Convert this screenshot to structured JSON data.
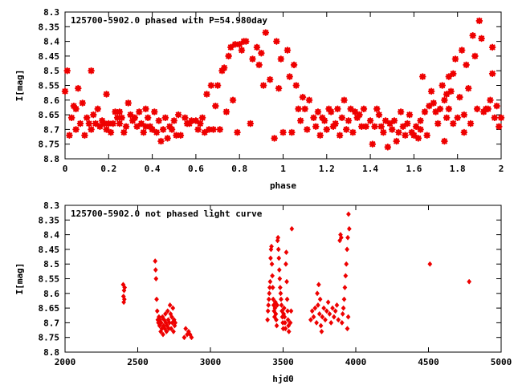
{
  "colors": {
    "series": "#ee0000",
    "axis": "#000000",
    "background": "#ffffff"
  },
  "chart_data": [
    {
      "type": "scatter",
      "title": "125700-5902.0 phased with P=54.980day",
      "xlabel": "phase",
      "ylabel": "I[mag]",
      "xlim": [
        0,
        2
      ],
      "ylim": [
        8.8,
        8.3
      ],
      "y_inverted": true,
      "grid": false,
      "marker": "star",
      "xticks": [
        "0",
        "0.2",
        "0.4",
        "0.6",
        "0.8",
        "1",
        "1.2",
        "1.4",
        "1.6",
        "1.8",
        "2"
      ],
      "yticks": [
        "8.3",
        "8.35",
        "8.4",
        "8.45",
        "8.5",
        "8.55",
        "8.6",
        "8.65",
        "8.7",
        "8.75",
        "8.8"
      ],
      "points": [
        [
          0.0,
          8.57
        ],
        [
          0.01,
          8.5
        ],
        [
          0.02,
          8.72
        ],
        [
          0.03,
          8.66
        ],
        [
          0.04,
          8.62
        ],
        [
          0.05,
          8.63
        ],
        [
          0.05,
          8.7
        ],
        [
          0.06,
          8.56
        ],
        [
          0.07,
          8.68
        ],
        [
          0.08,
          8.61
        ],
        [
          0.09,
          8.72
        ],
        [
          0.1,
          8.66
        ],
        [
          0.11,
          8.68
        ],
        [
          0.12,
          8.5
        ],
        [
          0.12,
          8.7
        ],
        [
          0.13,
          8.65
        ],
        [
          0.14,
          8.68
        ],
        [
          0.15,
          8.63
        ],
        [
          0.16,
          8.69
        ],
        [
          0.17,
          8.67
        ],
        [
          0.18,
          8.68
        ],
        [
          0.19,
          8.7
        ],
        [
          0.19,
          8.58
        ],
        [
          0.2,
          8.68
        ],
        [
          0.21,
          8.71
        ],
        [
          0.22,
          8.68
        ],
        [
          0.23,
          8.64
        ],
        [
          0.24,
          8.66
        ],
        [
          0.25,
          8.64
        ],
        [
          0.25,
          8.68
        ],
        [
          0.26,
          8.66
        ],
        [
          0.27,
          8.71
        ],
        [
          0.28,
          8.69
        ],
        [
          0.29,
          8.61
        ],
        [
          0.3,
          8.65
        ],
        [
          0.31,
          8.67
        ],
        [
          0.32,
          8.66
        ],
        [
          0.33,
          8.69
        ],
        [
          0.34,
          8.64
        ],
        [
          0.35,
          8.68
        ],
        [
          0.36,
          8.71
        ],
        [
          0.37,
          8.63
        ],
        [
          0.37,
          8.69
        ],
        [
          0.38,
          8.66
        ],
        [
          0.39,
          8.69
        ],
        [
          0.4,
          8.7
        ],
        [
          0.41,
          8.64
        ],
        [
          0.42,
          8.71
        ],
        [
          0.43,
          8.67
        ],
        [
          0.44,
          8.74
        ],
        [
          0.45,
          8.7
        ],
        [
          0.46,
          8.66
        ],
        [
          0.47,
          8.73
        ],
        [
          0.48,
          8.69
        ],
        [
          0.49,
          8.7
        ],
        [
          0.5,
          8.67
        ],
        [
          0.51,
          8.72
        ],
        [
          0.52,
          8.65
        ],
        [
          0.53,
          8.72
        ],
        [
          0.55,
          8.66
        ],
        [
          0.56,
          8.68
        ],
        [
          0.57,
          8.68
        ],
        [
          0.58,
          8.67
        ],
        [
          0.6,
          8.67
        ],
        [
          0.61,
          8.7
        ],
        [
          0.62,
          8.68
        ],
        [
          0.63,
          8.66
        ],
        [
          0.64,
          8.71
        ],
        [
          0.65,
          8.58
        ],
        [
          0.66,
          8.7
        ],
        [
          0.67,
          8.55
        ],
        [
          0.68,
          8.7
        ],
        [
          0.69,
          8.62
        ],
        [
          0.7,
          8.55
        ],
        [
          0.71,
          8.7
        ],
        [
          0.72,
          8.5
        ],
        [
          0.73,
          8.49
        ],
        [
          0.74,
          8.64
        ],
        [
          0.75,
          8.45
        ],
        [
          0.76,
          8.42
        ],
        [
          0.77,
          8.6
        ],
        [
          0.78,
          8.41
        ],
        [
          0.79,
          8.71
        ],
        [
          0.8,
          8.41
        ],
        [
          0.81,
          8.43
        ],
        [
          0.82,
          8.4
        ],
        [
          0.83,
          8.4
        ],
        [
          0.85,
          8.68
        ],
        [
          0.86,
          8.46
        ],
        [
          0.88,
          8.42
        ],
        [
          0.89,
          8.48
        ],
        [
          0.9,
          8.44
        ],
        [
          0.91,
          8.55
        ],
        [
          0.92,
          8.37
        ],
        [
          0.94,
          8.53
        ],
        [
          0.96,
          8.73
        ],
        [
          0.97,
          8.4
        ],
        [
          0.98,
          8.56
        ],
        [
          0.99,
          8.46
        ],
        [
          1.0,
          8.71
        ],
        [
          1.02,
          8.43
        ],
        [
          1.03,
          8.52
        ],
        [
          1.04,
          8.71
        ],
        [
          1.05,
          8.48
        ],
        [
          1.06,
          8.55
        ],
        [
          1.07,
          8.63
        ],
        [
          1.08,
          8.67
        ],
        [
          1.09,
          8.59
        ],
        [
          1.1,
          8.63
        ],
        [
          1.11,
          8.7
        ],
        [
          1.12,
          8.6
        ],
        [
          1.14,
          8.66
        ],
        [
          1.15,
          8.69
        ],
        [
          1.16,
          8.64
        ],
        [
          1.17,
          8.72
        ],
        [
          1.18,
          8.66
        ],
        [
          1.19,
          8.67
        ],
        [
          1.2,
          8.7
        ],
        [
          1.21,
          8.63
        ],
        [
          1.22,
          8.64
        ],
        [
          1.23,
          8.69
        ],
        [
          1.24,
          8.68
        ],
        [
          1.25,
          8.63
        ],
        [
          1.26,
          8.72
        ],
        [
          1.27,
          8.66
        ],
        [
          1.28,
          8.6
        ],
        [
          1.29,
          8.7
        ],
        [
          1.3,
          8.67
        ],
        [
          1.31,
          8.63
        ],
        [
          1.32,
          8.71
        ],
        [
          1.33,
          8.64
        ],
        [
          1.34,
          8.66
        ],
        [
          1.35,
          8.65
        ],
        [
          1.36,
          8.69
        ],
        [
          1.37,
          8.63
        ],
        [
          1.38,
          8.69
        ],
        [
          1.4,
          8.67
        ],
        [
          1.41,
          8.75
        ],
        [
          1.42,
          8.69
        ],
        [
          1.43,
          8.63
        ],
        [
          1.44,
          8.65
        ],
        [
          1.45,
          8.69
        ],
        [
          1.46,
          8.71
        ],
        [
          1.47,
          8.67
        ],
        [
          1.48,
          8.76
        ],
        [
          1.49,
          8.68
        ],
        [
          1.5,
          8.7
        ],
        [
          1.51,
          8.67
        ],
        [
          1.52,
          8.74
        ],
        [
          1.53,
          8.71
        ],
        [
          1.54,
          8.64
        ],
        [
          1.55,
          8.69
        ],
        [
          1.56,
          8.72
        ],
        [
          1.57,
          8.68
        ],
        [
          1.58,
          8.65
        ],
        [
          1.59,
          8.71
        ],
        [
          1.6,
          8.72
        ],
        [
          1.61,
          8.69
        ],
        [
          1.62,
          8.73
        ],
        [
          1.63,
          8.67
        ],
        [
          1.63,
          8.7
        ],
        [
          1.64,
          8.52
        ],
        [
          1.65,
          8.64
        ],
        [
          1.66,
          8.72
        ],
        [
          1.67,
          8.62
        ],
        [
          1.68,
          8.57
        ],
        [
          1.69,
          8.61
        ],
        [
          1.7,
          8.64
        ],
        [
          1.71,
          8.68
        ],
        [
          1.72,
          8.63
        ],
        [
          1.73,
          8.55
        ],
        [
          1.74,
          8.74
        ],
        [
          1.74,
          8.6
        ],
        [
          1.75,
          8.58
        ],
        [
          1.75,
          8.66
        ],
        [
          1.76,
          8.52
        ],
        [
          1.76,
          8.63
        ],
        [
          1.77,
          8.57
        ],
        [
          1.78,
          8.51
        ],
        [
          1.78,
          8.68
        ],
        [
          1.79,
          8.46
        ],
        [
          1.8,
          8.66
        ],
        [
          1.81,
          8.59
        ],
        [
          1.82,
          8.43
        ],
        [
          1.83,
          8.71
        ],
        [
          1.83,
          8.65
        ],
        [
          1.84,
          8.48
        ],
        [
          1.85,
          8.56
        ],
        [
          1.86,
          8.68
        ],
        [
          1.87,
          8.38
        ],
        [
          1.88,
          8.45
        ],
        [
          1.89,
          8.63
        ],
        [
          1.9,
          8.33
        ],
        [
          1.91,
          8.39
        ],
        [
          1.92,
          8.64
        ],
        [
          1.93,
          8.63
        ],
        [
          1.94,
          8.63
        ],
        [
          1.95,
          8.6
        ],
        [
          1.96,
          8.42
        ],
        [
          1.96,
          8.51
        ],
        [
          1.97,
          8.66
        ],
        [
          1.98,
          8.62
        ],
        [
          1.99,
          8.69
        ],
        [
          2.0,
          8.66
        ]
      ]
    },
    {
      "type": "scatter",
      "title": "125700-5902.0 not phased light curve",
      "xlabel": "hjd0",
      "ylabel": "I[mag]",
      "xlim": [
        2000,
        5000
      ],
      "ylim": [
        8.8,
        8.3
      ],
      "y_inverted": true,
      "grid": false,
      "marker": "diamond",
      "xticks": [
        "2000",
        "2500",
        "3000",
        "3500",
        "4000",
        "4500",
        "5000"
      ],
      "yticks": [
        "8.3",
        "8.35",
        "8.4",
        "8.45",
        "8.5",
        "8.55",
        "8.6",
        "8.65",
        "8.7",
        "8.75",
        "8.8"
      ],
      "points": [
        [
          2400,
          8.57
        ],
        [
          2402,
          8.61
        ],
        [
          2404,
          8.63
        ],
        [
          2406,
          8.59
        ],
        [
          2408,
          8.62
        ],
        [
          2410,
          8.58
        ],
        [
          2620,
          8.49
        ],
        [
          2623,
          8.52
        ],
        [
          2626,
          8.55
        ],
        [
          2630,
          8.62
        ],
        [
          2634,
          8.66
        ],
        [
          2638,
          8.69
        ],
        [
          2642,
          8.7
        ],
        [
          2646,
          8.68
        ],
        [
          2650,
          8.71
        ],
        [
          2654,
          8.69
        ],
        [
          2658,
          8.73
        ],
        [
          2662,
          8.7
        ],
        [
          2666,
          8.72
        ],
        [
          2670,
          8.68
        ],
        [
          2674,
          8.74
        ],
        [
          2678,
          8.71
        ],
        [
          2682,
          8.69
        ],
        [
          2686,
          8.72
        ],
        [
          2690,
          8.67
        ],
        [
          2694,
          8.7
        ],
        [
          2698,
          8.73
        ],
        [
          2702,
          8.71
        ],
        [
          2706,
          8.66
        ],
        [
          2710,
          8.69
        ],
        [
          2714,
          8.72
        ],
        [
          2718,
          8.7
        ],
        [
          2722,
          8.64
        ],
        [
          2726,
          8.67
        ],
        [
          2730,
          8.72
        ],
        [
          2734,
          8.68
        ],
        [
          2738,
          8.7
        ],
        [
          2742,
          8.65
        ],
        [
          2746,
          8.73
        ],
        [
          2750,
          8.69
        ],
        [
          2754,
          8.71
        ],
        [
          2758,
          8.7
        ],
        [
          2820,
          8.75
        ],
        [
          2830,
          8.72
        ],
        [
          2840,
          8.74
        ],
        [
          2850,
          8.73
        ],
        [
          2860,
          8.74
        ],
        [
          2870,
          8.75
        ],
        [
          3393,
          8.69
        ],
        [
          3396,
          8.66
        ],
        [
          3399,
          8.64
        ],
        [
          3402,
          8.62
        ],
        [
          3405,
          8.6
        ],
        [
          3408,
          8.58
        ],
        [
          3411,
          8.56
        ],
        [
          3414,
          8.48
        ],
        [
          3417,
          8.45
        ],
        [
          3420,
          8.44
        ],
        [
          3423,
          8.5
        ],
        [
          3426,
          8.54
        ],
        [
          3429,
          8.58
        ],
        [
          3432,
          8.62
        ],
        [
          3435,
          8.64
        ],
        [
          3438,
          8.66
        ],
        [
          3441,
          8.68
        ],
        [
          3444,
          8.65
        ],
        [
          3447,
          8.63
        ],
        [
          3450,
          8.67
        ],
        [
          3453,
          8.69
        ],
        [
          3456,
          8.71
        ],
        [
          3459,
          8.64
        ],
        [
          3462,
          8.42
        ],
        [
          3465,
          8.41
        ],
        [
          3468,
          8.45
        ],
        [
          3471,
          8.48
        ],
        [
          3474,
          8.52
        ],
        [
          3477,
          8.55
        ],
        [
          3480,
          8.58
        ],
        [
          3483,
          8.6
        ],
        [
          3486,
          8.62
        ],
        [
          3489,
          8.64
        ],
        [
          3492,
          8.66
        ],
        [
          3495,
          8.68
        ],
        [
          3498,
          8.7
        ],
        [
          3501,
          8.72
        ],
        [
          3504,
          8.67
        ],
        [
          3507,
          8.65
        ],
        [
          3510,
          8.68
        ],
        [
          3513,
          8.7
        ],
        [
          3516,
          8.72
        ],
        [
          3519,
          8.5
        ],
        [
          3522,
          8.46
        ],
        [
          3525,
          8.56
        ],
        [
          3528,
          8.62
        ],
        [
          3531,
          8.66
        ],
        [
          3534,
          8.69
        ],
        [
          3537,
          8.71
        ],
        [
          3540,
          8.73
        ],
        [
          3550,
          8.7
        ],
        [
          3555,
          8.66
        ],
        [
          3560,
          8.38
        ],
        [
          3690,
          8.69
        ],
        [
          3700,
          8.66
        ],
        [
          3710,
          8.68
        ],
        [
          3720,
          8.65
        ],
        [
          3730,
          8.7
        ],
        [
          3740,
          8.64
        ],
        [
          3750,
          8.67
        ],
        [
          3760,
          8.71
        ],
        [
          3770,
          8.68
        ],
        [
          3780,
          8.65
        ],
        [
          3790,
          8.69
        ],
        [
          3800,
          8.66
        ],
        [
          3810,
          8.63
        ],
        [
          3820,
          8.67
        ],
        [
          3830,
          8.7
        ],
        [
          3840,
          8.65
        ],
        [
          3850,
          8.68
        ],
        [
          3860,
          8.66
        ],
        [
          3870,
          8.64
        ],
        [
          3880,
          8.69
        ],
        [
          3735,
          8.6
        ],
        [
          3745,
          8.57
        ],
        [
          3755,
          8.62
        ],
        [
          3765,
          8.73
        ],
        [
          3890,
          8.42
        ],
        [
          3895,
          8.4
        ],
        [
          3900,
          8.41
        ],
        [
          3905,
          8.7
        ],
        [
          3910,
          8.67
        ],
        [
          3915,
          8.65
        ],
        [
          3920,
          8.62
        ],
        [
          3925,
          8.58
        ],
        [
          3930,
          8.54
        ],
        [
          3935,
          8.5
        ],
        [
          3940,
          8.45
        ],
        [
          3945,
          8.41
        ],
        [
          3950,
          8.33
        ],
        [
          3955,
          8.38
        ],
        [
          3942,
          8.72
        ],
        [
          3948,
          8.68
        ],
        [
          4510,
          8.5
        ],
        [
          4780,
          8.56
        ]
      ]
    }
  ]
}
